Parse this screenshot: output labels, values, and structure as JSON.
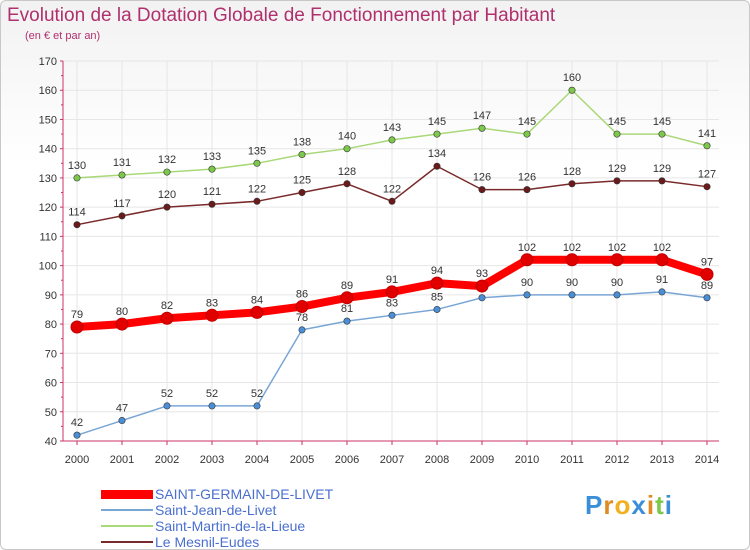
{
  "title": "Evolution de la Dotation Globale de Fonctionnement par Habitant",
  "subtitle": "(en € et par an)",
  "logo": "Proxiti",
  "chart_data": {
    "type": "line",
    "title": "Evolution de la Dotation Globale de Fonctionnement par Habitant",
    "subtitle": "(en € et par an)",
    "xlabel": "",
    "ylabel": "",
    "x": [
      "2000",
      "2001",
      "2002",
      "2003",
      "2004",
      "2005",
      "2006",
      "2007",
      "2008",
      "2009",
      "2010",
      "2011",
      "2012",
      "2013",
      "2014"
    ],
    "ylim": [
      40,
      170
    ],
    "yticks": [
      40,
      50,
      60,
      70,
      80,
      90,
      100,
      110,
      120,
      130,
      140,
      150,
      160,
      170
    ],
    "grid": true,
    "legend_position": "bottom-left",
    "series": [
      {
        "name": "SAINT-GERMAIN-DE-LIVET",
        "color": "#ff0000",
        "marker": "#e00000",
        "values": [
          79,
          80,
          82,
          83,
          84,
          86,
          89,
          91,
          94,
          93,
          102,
          102,
          102,
          102,
          97
        ]
      },
      {
        "name": "Saint-Jean-de-Livet",
        "color": "#7aa6d6",
        "marker": "#4a8ed8",
        "values": [
          42,
          47,
          52,
          52,
          52,
          78,
          81,
          83,
          85,
          89,
          90,
          90,
          90,
          91,
          89
        ]
      },
      {
        "name": "Saint-Martin-de-la-Lieue",
        "color": "#a8d878",
        "marker": "#7cc84a",
        "values": [
          130,
          131,
          132,
          133,
          135,
          138,
          140,
          143,
          145,
          147,
          145,
          160,
          145,
          145,
          141
        ]
      },
      {
        "name": "Le Mesnil-Eudes",
        "color": "#7a2a2a",
        "marker": "#6a1a1a",
        "values": [
          114,
          117,
          120,
          121,
          122,
          125,
          128,
          122,
          134,
          126,
          126,
          128,
          129,
          129,
          127
        ]
      }
    ]
  }
}
